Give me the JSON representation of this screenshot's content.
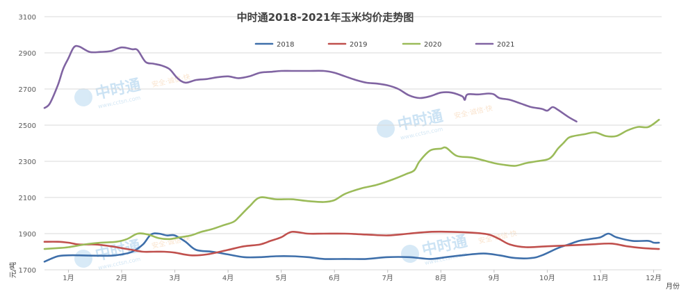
{
  "chart_data": {
    "type": "line",
    "title": "中时通2018-2021年玉米均价走势图",
    "ylabel": "元/吨",
    "xlabel": "月份",
    "ylim": [
      1700,
      3100
    ],
    "yticks": [
      1700,
      1900,
      2100,
      2300,
      2500,
      2700,
      2900,
      3100
    ],
    "xlim": [
      0.55,
      12.15
    ],
    "categories": [
      "1月",
      "2月",
      "3月",
      "4月",
      "5月",
      "6月",
      "7月",
      "8月",
      "9月",
      "10月",
      "11月",
      "12月"
    ],
    "grid": "horizontal",
    "legend_position": "top",
    "watermark": {
      "brand": "中时通",
      "url": "www.cctsn.com",
      "slogan": "安全·诚信·快"
    },
    "series": [
      {
        "name": "2018",
        "color": "#3e6faa",
        "x": [
          0.55,
          0.8,
          1.0,
          1.2,
          1.5,
          1.8,
          2.0,
          2.2,
          2.4,
          2.55,
          2.7,
          2.85,
          3.0,
          3.2,
          3.4,
          3.7,
          4.0,
          4.3,
          4.6,
          4.9,
          5.2,
          5.5,
          5.8,
          6.2,
          6.6,
          7.0,
          7.4,
          7.8,
          8.1,
          8.4,
          8.8,
          9.1,
          9.4,
          9.7,
          9.9,
          10.2,
          10.4,
          10.6,
          10.8,
          11.0,
          11.15,
          11.3,
          11.6,
          11.9,
          12.0,
          12.1
        ],
        "y": [
          1745,
          1775,
          1780,
          1780,
          1778,
          1778,
          1785,
          1800,
          1840,
          1895,
          1900,
          1890,
          1890,
          1855,
          1810,
          1800,
          1785,
          1770,
          1770,
          1775,
          1775,
          1770,
          1760,
          1760,
          1760,
          1770,
          1770,
          1760,
          1770,
          1780,
          1790,
          1780,
          1765,
          1765,
          1780,
          1820,
          1840,
          1860,
          1870,
          1880,
          1900,
          1880,
          1860,
          1860,
          1850,
          1850
        ]
      },
      {
        "name": "2019",
        "color": "#c0504d",
        "x": [
          0.55,
          0.8,
          1.0,
          1.2,
          1.5,
          1.8,
          2.0,
          2.2,
          2.4,
          2.6,
          2.8,
          3.0,
          3.3,
          3.6,
          4.0,
          4.3,
          4.6,
          4.8,
          5.0,
          5.2,
          5.5,
          5.8,
          6.2,
          6.6,
          7.0,
          7.4,
          7.8,
          8.2,
          8.6,
          8.9,
          9.1,
          9.3,
          9.6,
          10.0,
          10.4,
          10.8,
          11.2,
          11.5,
          11.8,
          12.1
        ],
        "y": [
          1855,
          1855,
          1850,
          1840,
          1840,
          1830,
          1820,
          1810,
          1800,
          1800,
          1800,
          1795,
          1780,
          1785,
          1810,
          1830,
          1840,
          1860,
          1880,
          1910,
          1900,
          1900,
          1900,
          1895,
          1890,
          1900,
          1910,
          1910,
          1905,
          1895,
          1870,
          1840,
          1825,
          1830,
          1835,
          1840,
          1845,
          1830,
          1820,
          1815
        ]
      },
      {
        "name": "2020",
        "color": "#9bbb59",
        "x": [
          0.55,
          0.8,
          1.0,
          1.3,
          1.6,
          1.9,
          2.1,
          2.3,
          2.5,
          2.7,
          2.9,
          3.1,
          3.3,
          3.5,
          3.7,
          3.9,
          4.1,
          4.2,
          4.4,
          4.6,
          4.9,
          5.2,
          5.5,
          5.8,
          6.0,
          6.2,
          6.5,
          6.8,
          7.1,
          7.35,
          7.5,
          7.6,
          7.8,
          8.0,
          8.1,
          8.3,
          8.6,
          9.0,
          9.2,
          9.4,
          9.6,
          9.8,
          10.0,
          10.1,
          10.2,
          10.3,
          10.4,
          10.5,
          10.7,
          10.9,
          11.1,
          11.3,
          11.5,
          11.7,
          11.9,
          12.1
        ],
        "y": [
          1815,
          1820,
          1825,
          1840,
          1850,
          1855,
          1870,
          1900,
          1895,
          1875,
          1870,
          1880,
          1890,
          1910,
          1925,
          1945,
          1965,
          1990,
          2050,
          2100,
          2090,
          2090,
          2080,
          2075,
          2085,
          2120,
          2150,
          2170,
          2200,
          2230,
          2250,
          2300,
          2360,
          2370,
          2375,
          2330,
          2320,
          2290,
          2280,
          2275,
          2290,
          2300,
          2310,
          2330,
          2370,
          2400,
          2430,
          2440,
          2450,
          2460,
          2440,
          2440,
          2470,
          2490,
          2490,
          2530
        ]
      },
      {
        "name": "2021",
        "color": "#8064a2",
        "x": [
          0.55,
          0.65,
          0.8,
          0.9,
          1.0,
          1.1,
          1.2,
          1.4,
          1.6,
          1.8,
          2.0,
          2.2,
          2.3,
          2.45,
          2.6,
          2.75,
          2.9,
          3.05,
          3.2,
          3.4,
          3.6,
          3.8,
          4.0,
          4.2,
          4.4,
          4.6,
          4.8,
          5.0,
          5.2,
          5.5,
          5.8,
          6.0,
          6.2,
          6.4,
          6.6,
          6.8,
          7.0,
          7.2,
          7.4,
          7.6,
          7.8,
          8.0,
          8.2,
          8.4,
          8.45,
          8.5,
          8.7,
          8.9,
          9.0,
          9.1,
          9.3,
          9.5,
          9.7,
          9.9,
          10.0,
          10.1,
          10.2,
          10.4,
          10.55
        ],
        "y": [
          2595,
          2620,
          2720,
          2810,
          2870,
          2930,
          2935,
          2905,
          2905,
          2910,
          2930,
          2920,
          2915,
          2850,
          2840,
          2830,
          2810,
          2760,
          2735,
          2750,
          2755,
          2765,
          2770,
          2760,
          2770,
          2790,
          2795,
          2800,
          2800,
          2800,
          2800,
          2790,
          2770,
          2750,
          2735,
          2730,
          2720,
          2700,
          2665,
          2650,
          2660,
          2680,
          2680,
          2660,
          2640,
          2670,
          2670,
          2675,
          2670,
          2650,
          2640,
          2620,
          2600,
          2590,
          2580,
          2600,
          2585,
          2545,
          2520
        ]
      }
    ]
  }
}
